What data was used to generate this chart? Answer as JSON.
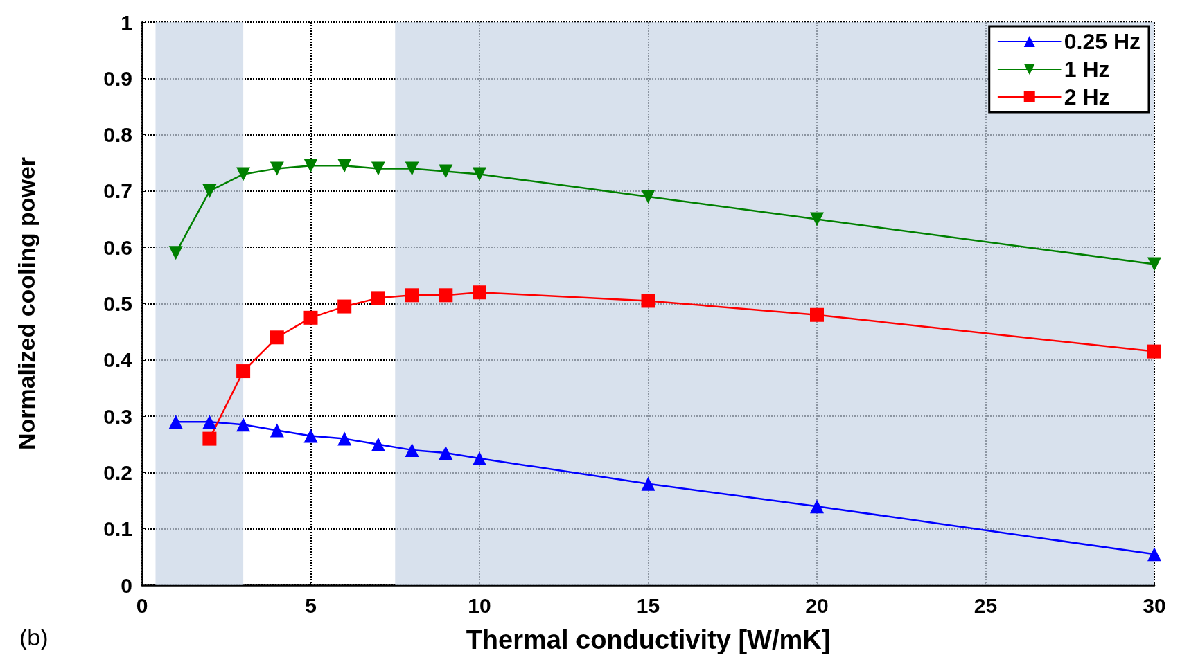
{
  "chart_data": {
    "type": "line",
    "xlabel": "Thermal conductivity [W/mK]",
    "ylabel": "Normalized cooling power",
    "xlim": [
      0,
      30
    ],
    "xticks": [
      0,
      5,
      10,
      15,
      20,
      25,
      30
    ],
    "ylim": [
      0,
      1
    ],
    "yticks": [
      0,
      0.1,
      0.2,
      0.3,
      0.4,
      0.5,
      0.6,
      0.7,
      0.8,
      0.9,
      1
    ],
    "grid": true,
    "legend": "top right",
    "line_style": "solid",
    "annotations": [
      "(b)"
    ],
    "series": [
      {
        "name": "0.25 Hz",
        "color": "#0000ff",
        "marker": "triangle",
        "x": [
          1,
          2,
          3,
          4,
          5,
          6,
          7,
          8,
          9,
          10,
          15,
          20,
          30
        ],
        "values": [
          0.29,
          0.29,
          0.285,
          0.275,
          0.265,
          0.26,
          0.25,
          0.24,
          0.235,
          0.225,
          0.18,
          0.14,
          0.055
        ]
      },
      {
        "name": "1 Hz",
        "color": "#008000",
        "marker": "triangle-down",
        "x": [
          1,
          2,
          3,
          4,
          5,
          6,
          7,
          8,
          9,
          10,
          15,
          20,
          30
        ],
        "values": [
          0.59,
          0.7,
          0.73,
          0.74,
          0.745,
          0.745,
          0.74,
          0.74,
          0.735,
          0.73,
          0.69,
          0.65,
          0.57
        ]
      },
      {
        "name": "2 Hz",
        "color": "#ff0000",
        "marker": "square",
        "x": [
          2,
          3,
          4,
          5,
          6,
          7,
          8,
          9,
          10,
          15,
          20,
          30
        ],
        "values": [
          0.26,
          0.38,
          0.44,
          0.475,
          0.495,
          0.51,
          0.515,
          0.515,
          0.52,
          0.505,
          0.48,
          0.415
        ]
      }
    ],
    "bands": [
      {
        "axis": "x",
        "from": 0.4,
        "to": 3,
        "color": "#c8d4e6"
      },
      {
        "axis": "x",
        "from": 7.5,
        "to": 30,
        "color": "#c8d4e6"
      }
    ]
  }
}
